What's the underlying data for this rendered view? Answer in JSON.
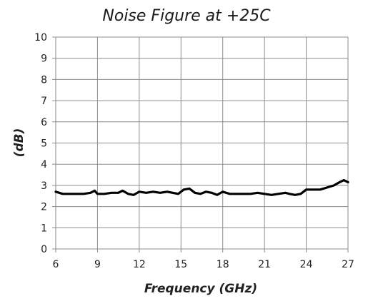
{
  "chart_data": {
    "type": "line",
    "title": "Noise Figure at +25C",
    "xlabel": "Frequency (GHz)",
    "ylabel": "(dB)",
    "xlim": [
      6,
      27
    ],
    "ylim": [
      0,
      10
    ],
    "xticks": [
      "6",
      "9",
      "12",
      "15",
      "18",
      "21",
      "24",
      "27"
    ],
    "yticks": [
      "0",
      "1",
      "2",
      "3",
      "4",
      "5",
      "6",
      "7",
      "8",
      "9",
      "10"
    ],
    "grid": true,
    "line_color": "#000000",
    "series": [
      {
        "x": [
          6.0,
          6.5,
          7.0,
          7.5,
          8.0,
          8.5,
          8.8,
          9.0,
          9.5,
          10.0,
          10.5,
          10.8,
          11.2,
          11.6,
          12.0,
          12.5,
          13.0,
          13.5,
          14.0,
          14.4,
          14.8,
          15.2,
          15.6,
          16.0,
          16.4,
          16.8,
          17.2,
          17.6,
          18.0,
          18.5,
          19.0,
          19.5,
          20.0,
          20.5,
          21.0,
          21.5,
          22.0,
          22.5,
          22.8,
          23.2,
          23.6,
          24.0,
          24.5,
          25.0,
          25.5,
          26.0,
          26.4,
          26.7,
          27.0
        ],
        "values": [
          2.7,
          2.6,
          2.6,
          2.6,
          2.6,
          2.65,
          2.75,
          2.6,
          2.6,
          2.65,
          2.65,
          2.75,
          2.6,
          2.55,
          2.7,
          2.65,
          2.7,
          2.65,
          2.7,
          2.65,
          2.6,
          2.8,
          2.85,
          2.65,
          2.6,
          2.7,
          2.65,
          2.55,
          2.7,
          2.6,
          2.6,
          2.6,
          2.6,
          2.65,
          2.6,
          2.55,
          2.6,
          2.65,
          2.6,
          2.55,
          2.6,
          2.8,
          2.8,
          2.8,
          2.9,
          3.0,
          3.15,
          3.25,
          3.15
        ]
      }
    ]
  }
}
